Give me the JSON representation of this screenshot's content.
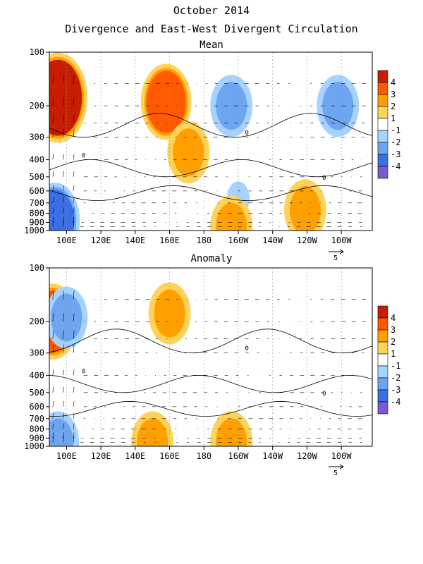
{
  "title": "October 2014",
  "subtitle": "Divergence and East-West Divergent Circulation",
  "colorbar": {
    "levels": [
      "4",
      "3",
      "2",
      "1",
      "-1",
      "-2",
      "-3",
      "-4"
    ],
    "colors": [
      "#c81e00",
      "#ff5a00",
      "#ffa000",
      "#ffd25a",
      "#ffffff",
      "#a5d2ff",
      "#6ea5f0",
      "#3c6ee6",
      "#785ad2"
    ]
  },
  "reference_vector_label": "5",
  "chart_data": [
    {
      "type": "heatmap",
      "title": "Mean",
      "x_ticks": [
        "100E",
        "120E",
        "140E",
        "160E",
        "180",
        "160W",
        "140W",
        "120W",
        "100W"
      ],
      "y_ticks": [
        "100",
        "200",
        "300",
        "400",
        "500",
        "600",
        "700",
        "800",
        "900",
        "1000"
      ],
      "contour_label": "0",
      "blobs": [
        {
          "lon": 95,
          "p": 180,
          "value": 4
        },
        {
          "lon": 93,
          "p": 880,
          "value": -3
        },
        {
          "lon": 158,
          "p": 190,
          "value": 3
        },
        {
          "lon": 196,
          "p": 200,
          "value": -2
        },
        {
          "lon": 258,
          "p": 200,
          "value": -2
        },
        {
          "lon": 239,
          "p": 770,
          "value": 2
        },
        {
          "lon": 171,
          "p": 365,
          "value": 2
        },
        {
          "lon": 200,
          "p": 660,
          "value": -1
        },
        {
          "lon": 196,
          "p": 950,
          "value": 2
        }
      ]
    },
    {
      "type": "heatmap",
      "title": "Anomaly",
      "x_ticks": [
        "100E",
        "120E",
        "140E",
        "160E",
        "180",
        "160W",
        "140W",
        "120W",
        "100W"
      ],
      "y_ticks": [
        "100",
        "200",
        "300",
        "400",
        "500",
        "600",
        "700",
        "800",
        "900",
        "1000"
      ],
      "contour_label": "0",
      "blobs": [
        {
          "lon": 92,
          "p": 200,
          "value": 3
        },
        {
          "lon": 100,
          "p": 190,
          "value": -2
        },
        {
          "lon": 160,
          "p": 180,
          "value": 2
        },
        {
          "lon": 95,
          "p": 950,
          "value": -2
        },
        {
          "lon": 150,
          "p": 950,
          "value": 2
        },
        {
          "lon": 196,
          "p": 950,
          "value": 2
        }
      ]
    }
  ]
}
